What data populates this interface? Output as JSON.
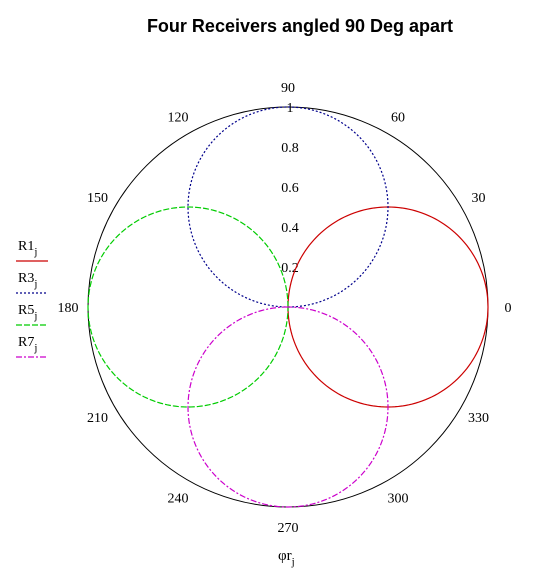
{
  "chart_data": {
    "type": "polar",
    "title": "Four Receivers angled 90 Deg apart",
    "xlabel_main": "φr",
    "xlabel_sub": "j",
    "angular_ticks": [
      "0",
      "30",
      "60",
      "90",
      "120",
      "150",
      "180",
      "210",
      "240",
      "270",
      "300",
      "330"
    ],
    "angular_tick_values": [
      0,
      30,
      60,
      90,
      120,
      150,
      180,
      210,
      240,
      270,
      300,
      330
    ],
    "radial_ticks": [
      "0.2",
      "0.4",
      "0.6",
      "0.8",
      "1"
    ],
    "radial_tick_values": [
      0.2,
      0.4,
      0.6,
      0.8,
      1.0
    ],
    "rlim": [
      0,
      1
    ],
    "grid": false,
    "legend_position": "left",
    "series": [
      {
        "name": "R1",
        "sub": "j",
        "formula": "r = max(0, cos(θ − 0°))",
        "peak_angle": 0,
        "peak_r": 1,
        "color": "#cc0000",
        "dash": ""
      },
      {
        "name": "R3",
        "sub": "j",
        "formula": "r = max(0, cos(θ − 90°))",
        "peak_angle": 90,
        "peak_r": 1,
        "color": "#00008b",
        "dash": "2,2"
      },
      {
        "name": "R5",
        "sub": "j",
        "formula": "r = max(0, cos(θ − 180°))",
        "peak_angle": 180,
        "peak_r": 1,
        "color": "#00cc00",
        "dash": "6,2"
      },
      {
        "name": "R7",
        "sub": "j",
        "formula": "r = max(0, cos(θ − 270°))",
        "peak_angle": 270,
        "peak_r": 1,
        "color": "#cc00cc",
        "dash": "6,2,2,2"
      }
    ]
  }
}
